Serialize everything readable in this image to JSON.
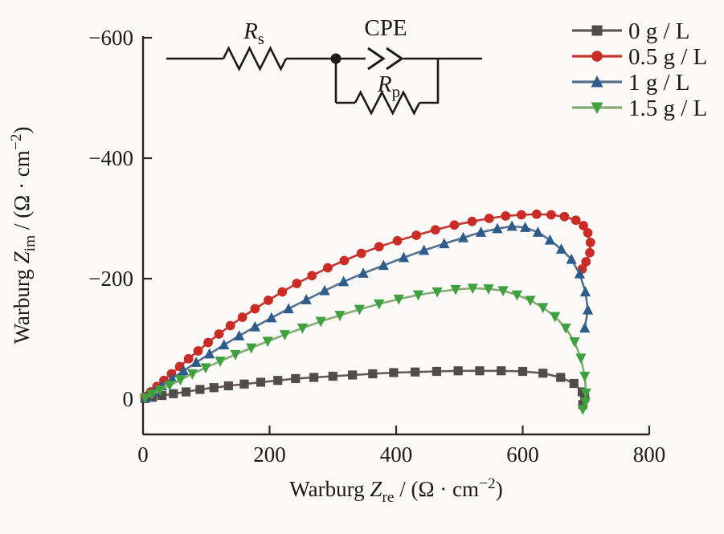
{
  "figure": {
    "background": "#fbfaf9",
    "axis_color": "#2a2826"
  },
  "circuit_inset": {
    "rs_label": "*R*_{s}",
    "cpe_label": "CPE",
    "rp_label": "*R*_{p}",
    "description": "series resistor Rs followed by CPE in parallel with Rp"
  },
  "legend": {
    "items": [
      {
        "label": "0 g / L",
        "series_index": 0
      },
      {
        "label": "0.5 g / L",
        "series_index": 1
      },
      {
        "label": "1 g / L",
        "series_index": 2
      },
      {
        "label": "1.5 g / L",
        "series_index": 3
      }
    ]
  },
  "chart_data": {
    "type": "scatter",
    "title": "",
    "xlabel": "Warburg Z_re / (Ω · cm⁻²)",
    "ylabel": "Warburg Z_im / (Ω · cm⁻²)",
    "xlabel_rich": "Warburg *Z*_{re} / (Ω · cm^{−2})",
    "ylabel_rich": "Warburg *Z*_{im} / (Ω · cm^{−2})",
    "xlim": [
      0,
      800
    ],
    "ylim_plotted": [
      58,
      -600
    ],
    "grid": false,
    "legend_position": "top-right-outside",
    "x_ticks": [
      {
        "v": 0,
        "label": "0"
      },
      {
        "v": 200,
        "label": "200"
      },
      {
        "v": 400,
        "label": "400"
      },
      {
        "v": 600,
        "label": "600"
      },
      {
        "v": 800,
        "label": "800"
      }
    ],
    "y_ticks": [
      {
        "v": 0,
        "label": "0"
      },
      {
        "v": -200,
        "label": "−200"
      },
      {
        "v": -400,
        "label": "−400"
      },
      {
        "v": -600,
        "label": "−600"
      }
    ],
    "series": [
      {
        "name": "0 g / L",
        "marker": "square",
        "marker_color": "#514b49",
        "line_color": "#5f5a57",
        "points": [
          [
            3,
            -1
          ],
          [
            15,
            -3
          ],
          [
            30,
            -6
          ],
          [
            48,
            -9
          ],
          [
            68,
            -12
          ],
          [
            90,
            -16
          ],
          [
            112,
            -19
          ],
          [
            135,
            -22
          ],
          [
            160,
            -25
          ],
          [
            186,
            -28
          ],
          [
            213,
            -31
          ],
          [
            241,
            -34
          ],
          [
            270,
            -36
          ],
          [
            300,
            -38
          ],
          [
            331,
            -40
          ],
          [
            363,
            -42
          ],
          [
            396,
            -44
          ],
          [
            430,
            -45
          ],
          [
            464,
            -46
          ],
          [
            498,
            -47
          ],
          [
            532,
            -47
          ],
          [
            566,
            -47
          ],
          [
            600,
            -46
          ],
          [
            632,
            -43
          ],
          [
            660,
            -36
          ],
          [
            681,
            -26
          ],
          [
            694,
            -12
          ],
          [
            698,
            -2
          ],
          [
            695,
            9
          ]
        ]
      },
      {
        "name": "0.5 g / L",
        "marker": "circle",
        "marker_color": "#cb2b25",
        "line_color": "#c4362e",
        "points": [
          [
            3,
            -4
          ],
          [
            12,
            -12
          ],
          [
            22,
            -21
          ],
          [
            33,
            -31
          ],
          [
            45,
            -42
          ],
          [
            58,
            -54
          ],
          [
            72,
            -67
          ],
          [
            87,
            -80
          ],
          [
            103,
            -94
          ],
          [
            120,
            -108
          ],
          [
            138,
            -122
          ],
          [
            157,
            -136
          ],
          [
            177,
            -150
          ],
          [
            198,
            -164
          ],
          [
            220,
            -178
          ],
          [
            243,
            -192
          ],
          [
            267,
            -205
          ],
          [
            292,
            -218
          ],
          [
            318,
            -230
          ],
          [
            345,
            -242
          ],
          [
            373,
            -253
          ],
          [
            402,
            -263
          ],
          [
            432,
            -272
          ],
          [
            462,
            -281
          ],
          [
            492,
            -289
          ],
          [
            520,
            -295
          ],
          [
            547,
            -300
          ],
          [
            573,
            -304
          ],
          [
            598,
            -306
          ],
          [
            622,
            -307
          ],
          [
            645,
            -306
          ],
          [
            666,
            -303
          ],
          [
            684,
            -297
          ],
          [
            696,
            -288
          ],
          [
            703,
            -276
          ],
          [
            707,
            -260
          ],
          [
            706,
            -243
          ],
          [
            700,
            -228
          ],
          [
            694,
            -216
          ]
        ]
      },
      {
        "name": "1 g / L",
        "marker": "triangle-up",
        "marker_color": "#2d5c8c",
        "line_color": "#53718c",
        "points": [
          [
            4,
            -3
          ],
          [
            16,
            -12
          ],
          [
            30,
            -22
          ],
          [
            46,
            -34
          ],
          [
            64,
            -47
          ],
          [
            84,
            -61
          ],
          [
            105,
            -75
          ],
          [
            128,
            -90
          ],
          [
            152,
            -105
          ],
          [
            177,
            -120
          ],
          [
            203,
            -135
          ],
          [
            230,
            -150
          ],
          [
            258,
            -165
          ],
          [
            287,
            -180
          ],
          [
            317,
            -195
          ],
          [
            348,
            -209
          ],
          [
            380,
            -222
          ],
          [
            412,
            -235
          ],
          [
            444,
            -247
          ],
          [
            476,
            -258
          ],
          [
            506,
            -268
          ],
          [
            534,
            -277
          ],
          [
            560,
            -283
          ],
          [
            583,
            -287
          ],
          [
            604,
            -285
          ],
          [
            624,
            -277
          ],
          [
            643,
            -264
          ],
          [
            661,
            -249
          ],
          [
            677,
            -232
          ],
          [
            690,
            -208
          ],
          [
            699,
            -178
          ],
          [
            703,
            -148
          ],
          [
            698,
            -118
          ]
        ]
      },
      {
        "name": "1.5 g / L",
        "marker": "triangle-down",
        "marker_color": "#3fa13e",
        "line_color": "#84ad74",
        "points": [
          [
            3,
            -2
          ],
          [
            14,
            -8
          ],
          [
            27,
            -15
          ],
          [
            42,
            -23
          ],
          [
            59,
            -32
          ],
          [
            78,
            -42
          ],
          [
            99,
            -52
          ],
          [
            122,
            -63
          ],
          [
            146,
            -74
          ],
          [
            171,
            -85
          ],
          [
            197,
            -96
          ],
          [
            224,
            -107
          ],
          [
            252,
            -118
          ],
          [
            281,
            -129
          ],
          [
            311,
            -139
          ],
          [
            342,
            -149
          ],
          [
            373,
            -158
          ],
          [
            404,
            -166
          ],
          [
            435,
            -173
          ],
          [
            465,
            -178
          ],
          [
            494,
            -182
          ],
          [
            521,
            -184
          ],
          [
            546,
            -183
          ],
          [
            569,
            -180
          ],
          [
            591,
            -173
          ],
          [
            612,
            -164
          ],
          [
            632,
            -152
          ],
          [
            651,
            -137
          ],
          [
            668,
            -118
          ],
          [
            682,
            -95
          ],
          [
            692,
            -68
          ],
          [
            698,
            -38
          ],
          [
            700,
            -10
          ],
          [
            699,
            5
          ],
          [
            695,
            17
          ]
        ]
      }
    ],
    "inset": "equivalent circuit: Rs in series with (CPE parallel Rp)"
  }
}
